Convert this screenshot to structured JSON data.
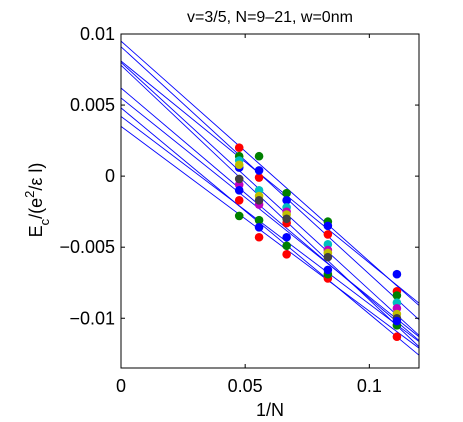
{
  "chart_data": {
    "type": "scatter",
    "title": "v=3/5, N=9–21, w=0nm",
    "xlabel": "1/N",
    "ylabel_main": "E",
    "ylabel_sub": "c",
    "ylabel_rest": "/(e",
    "ylabel_sup": "2",
    "ylabel_tail": "/ε l)",
    "xlim": [
      0,
      0.12
    ],
    "ylim": [
      -0.0135,
      0.01
    ],
    "xticks": [
      0,
      0.05,
      0.1
    ],
    "xtick_labels": [
      "0",
      "0.05",
      "0.1"
    ],
    "yticks": [
      0.01,
      0.005,
      0,
      -0.005,
      -0.01
    ],
    "ytick_labels": [
      "0.01",
      "0.005",
      "0",
      "−0.005",
      "−0.01"
    ],
    "grid": false,
    "fit_line_color": "#0000ff",
    "series": [
      {
        "color": "#ff0000",
        "x": [
          0.0476,
          0.0556,
          0.0667,
          0.0833,
          0.1111
        ],
        "y": [
          0.002,
          -0.0001,
          -0.0033,
          -0.0041,
          -0.0081
        ]
      },
      {
        "color": "#008000",
        "x": [
          0.0476,
          0.0556,
          0.0667,
          0.0833,
          0.1111
        ],
        "y": [
          0.0014,
          0.0014,
          -0.0012,
          -0.0032,
          -0.0084
        ]
      },
      {
        "color": "#0000ff",
        "x": [
          0.0476,
          0.0556,
          0.0667,
          0.0833,
          0.1111
        ],
        "y": [
          0.0006,
          0.0004,
          -0.0017,
          -0.0035,
          -0.0069
        ]
      },
      {
        "color": "#00bfbf",
        "x": [
          0.0476,
          0.0556,
          0.0667,
          0.0833,
          0.1111
        ],
        "y": [
          0.0011,
          -0.001,
          -0.0022,
          -0.0048,
          -0.0089
        ]
      },
      {
        "color": "#bf00bf",
        "x": [
          0.0476,
          0.0556,
          0.0667,
          0.0833,
          0.1111
        ],
        "y": [
          -0.0006,
          -0.002,
          -0.0025,
          -0.0052,
          -0.0093
        ]
      },
      {
        "color": "#bfbf00",
        "x": [
          0.0476,
          0.0556,
          0.0667,
          0.0833,
          0.1111
        ],
        "y": [
          0.0008,
          -0.0014,
          -0.0027,
          -0.0054,
          -0.0097
        ]
      },
      {
        "color": "#404040",
        "x": [
          0.0476,
          0.0556,
          0.0667,
          0.0833,
          0.1111
        ],
        "y": [
          -0.0002,
          -0.0017,
          -0.003,
          -0.0057,
          -0.01
        ]
      },
      {
        "color": "#ff0000",
        "x": [
          0.0476,
          0.0556,
          0.0667,
          0.0833,
          0.1111
        ],
        "y": [
          -0.0017,
          -0.0043,
          -0.0055,
          -0.0072,
          -0.0113
        ]
      },
      {
        "color": "#008000",
        "x": [
          0.0476,
          0.0556,
          0.0667,
          0.0833,
          0.1111
        ],
        "y": [
          -0.0028,
          -0.0031,
          -0.0049,
          -0.0069,
          -0.0105
        ]
      },
      {
        "color": "#0000ff",
        "x": [
          0.0476,
          0.0556,
          0.0667,
          0.0833,
          0.1111
        ],
        "y": [
          -0.001,
          -0.0036,
          -0.0043,
          -0.0066,
          -0.0102
        ]
      }
    ],
    "fit_lines": [
      {
        "intercept": 0.0095,
        "slope": -0.155
      },
      {
        "intercept": 0.0091,
        "slope": -0.16
      },
      {
        "intercept": 0.0081,
        "slope": -0.142
      },
      {
        "intercept": 0.008,
        "slope": -0.16
      },
      {
        "intercept": 0.0078,
        "slope": -0.165
      },
      {
        "intercept": 0.0062,
        "slope": -0.148
      },
      {
        "intercept": 0.0055,
        "slope": -0.14
      },
      {
        "intercept": 0.0048,
        "slope": -0.145
      },
      {
        "intercept": 0.0042,
        "slope": -0.132
      },
      {
        "intercept": 0.0035,
        "slope": -0.13
      }
    ]
  }
}
